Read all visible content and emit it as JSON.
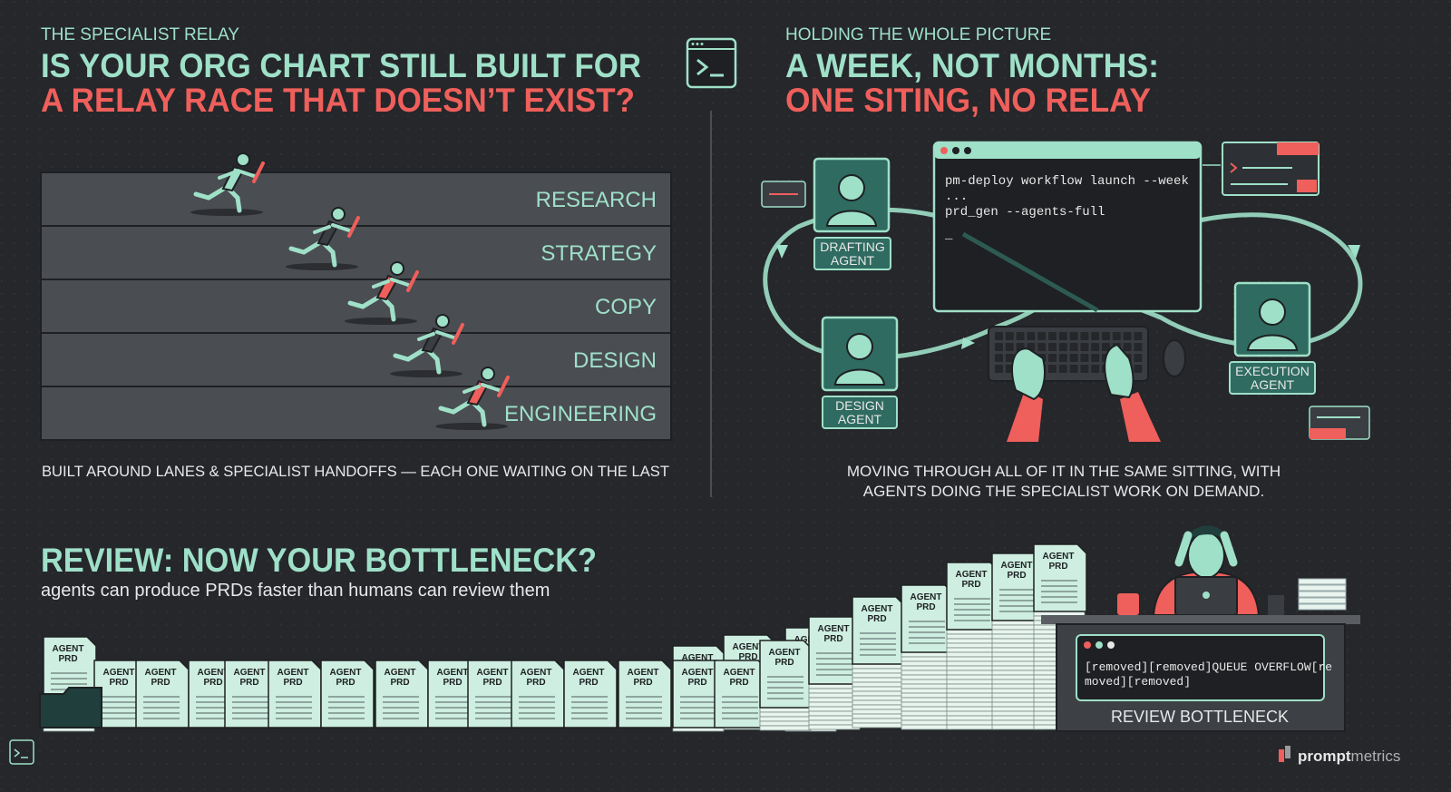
{
  "left": {
    "kicker": "THE SPECIALIST RELAY",
    "title_line1": "IS YOUR ORG CHART STILL BUILT FOR",
    "title_line2": "A RELAY RACE THAT DOESN’T EXIST?",
    "lanes": [
      "RESEARCH",
      "STRATEGY",
      "COPY",
      "DESIGN",
      "ENGINEERING"
    ],
    "caption": "BUILT AROUND LANES & SPECIALIST HANDOFFS — EACH ONE WAITING ON THE LAST"
  },
  "right": {
    "kicker": "HOLDING THE WHOLE PICTURE",
    "title_line1": "A WEEK, NOT MONTHS:",
    "title_line2": "ONE SITING, NO RELAY",
    "terminal": [
      "pm-deploy workflow launch --week",
      "...",
      "prd_gen --agents-full",
      "_"
    ],
    "agents": [
      {
        "label": [
          "DRAFTING",
          "AGENT"
        ]
      },
      {
        "label": [
          "DESIGN",
          "AGENT"
        ]
      },
      {
        "label": [
          "EXECUTION",
          "AGENT"
        ]
      }
    ],
    "caption": [
      "MOVING THROUGH ALL OF IT IN THE SAME SITTING, WITH",
      "AGENTS DOING THE SPECIALIST WORK ON DEMAND."
    ]
  },
  "bottom": {
    "title": "REVIEW: NOW YOUR BOTTLENECK?",
    "subtitle": "agents can produce PRDs faster than humans can review them",
    "doc_label": [
      "AGENT",
      "PRD"
    ],
    "screen": [
      "[removed][removed]QUEUE OVERFLOW[re",
      "moved][removed]"
    ],
    "desk_label": "REVIEW BOTTLENECK"
  },
  "brand": {
    "prefix": "prompt",
    "suffix": "metrics"
  }
}
